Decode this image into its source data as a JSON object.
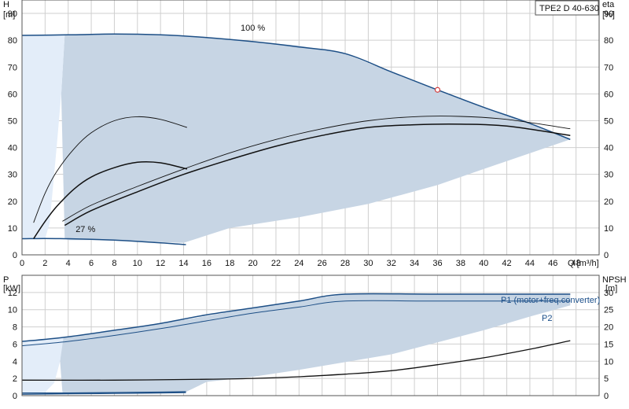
{
  "colors": {
    "envelope": "#c7d5e4",
    "envelope_light": "#e3edf9",
    "head_curve": "#1d4f86",
    "eta_curve": "#111111",
    "power_curve": "#1d4f86",
    "grid": "#cfcfcf"
  },
  "chart_data": [
    {
      "type": "line",
      "id": "qh",
      "title": "TPE2 D 40-630",
      "x_axis": {
        "label": "Q [m³/h]",
        "range": [
          0,
          50
        ],
        "ticks": [
          0,
          2,
          4,
          6,
          8,
          10,
          12,
          14,
          16,
          18,
          20,
          22,
          24,
          26,
          28,
          30,
          32,
          34,
          36,
          38,
          40,
          42,
          44,
          46,
          48
        ]
      },
      "y_left": {
        "label": "H",
        "unit": "[m]",
        "range": [
          0,
          95
        ],
        "ticks": [
          0,
          10,
          20,
          30,
          40,
          50,
          60,
          70,
          80,
          90
        ]
      },
      "y_right": {
        "label": "eta",
        "unit": "[%]",
        "range": [
          0,
          95
        ],
        "ticks": [
          0,
          10,
          20,
          30,
          40,
          50,
          60,
          70,
          80,
          90
        ]
      },
      "grid": true,
      "annotations": [
        {
          "text": "100 %",
          "x": 20.0,
          "y": 83.5
        },
        {
          "text": "27 %",
          "x": 5.5,
          "y": 8.5
        }
      ],
      "envelope": [
        [
          0,
          82
        ],
        [
          8,
          82.5
        ],
        [
          14,
          81.5
        ],
        [
          20,
          79.5
        ],
        [
          24,
          78
        ],
        [
          28,
          75
        ],
        [
          32,
          68
        ],
        [
          36,
          61.5
        ],
        [
          40,
          55
        ],
        [
          44,
          49
        ],
        [
          47.5,
          43
        ],
        [
          40,
          32
        ],
        [
          36,
          26
        ],
        [
          30,
          19
        ],
        [
          24,
          14
        ],
        [
          18,
          10
        ],
        [
          14,
          4.5
        ],
        [
          10,
          5
        ],
        [
          6,
          5.5
        ],
        [
          4,
          5.5
        ],
        [
          3.7,
          6
        ],
        [
          3.4,
          60
        ],
        [
          3.7,
          82
        ]
      ],
      "envelope_light": [
        [
          0,
          82
        ],
        [
          3.7,
          82
        ],
        [
          3.4,
          60
        ],
        [
          3,
          40
        ],
        [
          2.7,
          26
        ],
        [
          2.4,
          12
        ],
        [
          2,
          6
        ],
        [
          0,
          6
        ]
      ],
      "series": [
        {
          "name": "100 %",
          "role": "head",
          "points": [
            [
              0,
              81.8
            ],
            [
              4,
              82
            ],
            [
              8,
              82.3
            ],
            [
              12,
              82
            ],
            [
              16,
              81
            ],
            [
              20,
              79.5
            ],
            [
              24,
              77.5
            ],
            [
              28,
              75
            ],
            [
              32,
              68.2
            ],
            [
              36,
              61.5
            ],
            [
              40,
              55
            ],
            [
              44,
              49
            ],
            [
              47.5,
              43
            ]
          ]
        },
        {
          "name": "27 %",
          "role": "head",
          "points": [
            [
              0,
              6
            ],
            [
              2,
              6.1
            ],
            [
              4,
              6
            ],
            [
              6,
              5.8
            ],
            [
              8,
              5.5
            ],
            [
              10,
              5
            ],
            [
              12,
              4.5
            ],
            [
              14.2,
              3.8
            ]
          ]
        },
        {
          "name": "eta P2 100 %",
          "role": "eta_thin",
          "points": [
            [
              3.5,
              12.5
            ],
            [
              6,
              18.5
            ],
            [
              10,
              25.5
            ],
            [
              14,
              32
            ],
            [
              18,
              38
            ],
            [
              22,
              43
            ],
            [
              26,
              47
            ],
            [
              30,
              50
            ],
            [
              34,
              51.5
            ],
            [
              38,
              51.6
            ],
            [
              42,
              50.5
            ],
            [
              47.5,
              47
            ]
          ]
        },
        {
          "name": "eta P1 100 %",
          "role": "eta",
          "points": [
            [
              3.7,
              11
            ],
            [
              6,
              16.5
            ],
            [
              10,
              23.5
            ],
            [
              14,
              30
            ],
            [
              18,
              35.5
            ],
            [
              22,
              40.5
            ],
            [
              26,
              44.5
            ],
            [
              30,
              47.5
            ],
            [
              34,
              48.5
            ],
            [
              38,
              48.7
            ],
            [
              42,
              48
            ],
            [
              47.5,
              44.5
            ]
          ]
        },
        {
          "name": "eta P2 27 %",
          "role": "eta_thin",
          "points": [
            [
              1,
              12
            ],
            [
              2,
              23
            ],
            [
              3,
              31
            ],
            [
              4.5,
              39.5
            ],
            [
              6,
              45.5
            ],
            [
              8,
              50
            ],
            [
              10,
              51.5
            ],
            [
              12,
              50.5
            ],
            [
              14.3,
              47.5
            ]
          ]
        },
        {
          "name": "eta P1 27 %",
          "role": "eta",
          "points": [
            [
              1,
              6
            ],
            [
              2,
              12.5
            ],
            [
              3,
              18
            ],
            [
              4.5,
              24.5
            ],
            [
              6,
              29
            ],
            [
              8,
              32.5
            ],
            [
              10,
              34.5
            ],
            [
              12,
              34.3
            ],
            [
              14.3,
              32
            ]
          ]
        }
      ],
      "duty_point": {
        "x": 36,
        "y": 61.5
      }
    },
    {
      "type": "line",
      "id": "power",
      "x_axis": {
        "range": [
          0,
          50
        ]
      },
      "y_left": {
        "label": "P",
        "unit": "[kW]",
        "range": [
          0,
          14
        ],
        "ticks": [
          0,
          2,
          4,
          6,
          8,
          10,
          12
        ]
      },
      "y_right": {
        "label": "NPSH",
        "unit": "[m]",
        "range": [
          0,
          35
        ],
        "ticks": [
          0,
          5,
          10,
          15,
          20,
          25,
          30
        ]
      },
      "grid": true,
      "legend": [
        {
          "text": "P1 (motor+freq.converter)"
        },
        {
          "text": "P2"
        }
      ],
      "envelope": [
        [
          0,
          6.3
        ],
        [
          3.7,
          6.8
        ],
        [
          8,
          7.6
        ],
        [
          14,
          8.8
        ],
        [
          20,
          10.2
        ],
        [
          28,
          11.8
        ],
        [
          47.5,
          11.8
        ],
        [
          47.5,
          10.5
        ],
        [
          44,
          9.2
        ],
        [
          40,
          7.6
        ],
        [
          36,
          6.2
        ],
        [
          32,
          4.8
        ],
        [
          28,
          3.9
        ],
        [
          24,
          3.0
        ],
        [
          20,
          2.2
        ],
        [
          16,
          1.6
        ],
        [
          14,
          0.3
        ],
        [
          4,
          0.2
        ],
        [
          3.5,
          0.4
        ],
        [
          3.3,
          4
        ],
        [
          3.5,
          6.5
        ]
      ],
      "envelope_light": [
        [
          0,
          6.3
        ],
        [
          3.6,
          6.8
        ],
        [
          3.3,
          4
        ],
        [
          2.8,
          1.5
        ],
        [
          2,
          0.4
        ],
        [
          0,
          0.3
        ]
      ],
      "series": [
        {
          "name": "P1 (motor+freq.converter)",
          "role": "p1",
          "points": [
            [
              0,
              6.3
            ],
            [
              3.7,
              6.8
            ],
            [
              8,
              7.6
            ],
            [
              12,
              8.4
            ],
            [
              16,
              9.4
            ],
            [
              20,
              10.2
            ],
            [
              24,
              11
            ],
            [
              28,
              11.8
            ],
            [
              36,
              11.8
            ],
            [
              47.5,
              11.8
            ]
          ]
        },
        {
          "name": "P2",
          "role": "p2",
          "points": [
            [
              0,
              5.8
            ],
            [
              4,
              6.3
            ],
            [
              8,
              7
            ],
            [
              12,
              7.8
            ],
            [
              16,
              8.7
            ],
            [
              20,
              9.6
            ],
            [
              24,
              10.3
            ],
            [
              28,
              11
            ],
            [
              36,
              11
            ],
            [
              47.5,
              11
            ]
          ]
        },
        {
          "name": "NPSH",
          "role": "npsh",
          "points": [
            [
              0,
              1.8
            ],
            [
              8,
              1.8
            ],
            [
              16,
              1.9
            ],
            [
              20,
              2.0
            ],
            [
              24,
              2.2
            ],
            [
              28,
              2.5
            ],
            [
              32,
              2.9
            ],
            [
              36,
              3.6
            ],
            [
              40,
              4.4
            ],
            [
              44,
              5.4
            ],
            [
              47.5,
              6.4
            ]
          ]
        },
        {
          "name": "P1 27 %",
          "role": "p1",
          "points": [
            [
              0,
              0.3
            ],
            [
              4,
              0.3
            ],
            [
              8,
              0.35
            ],
            [
              12,
              0.4
            ],
            [
              14.2,
              0.45
            ]
          ]
        },
        {
          "name": "P2 27 %",
          "role": "p2",
          "points": [
            [
              0,
              0.15
            ],
            [
              4,
              0.2
            ],
            [
              8,
              0.25
            ],
            [
              12,
              0.3
            ],
            [
              14.2,
              0.35
            ]
          ]
        }
      ]
    }
  ]
}
